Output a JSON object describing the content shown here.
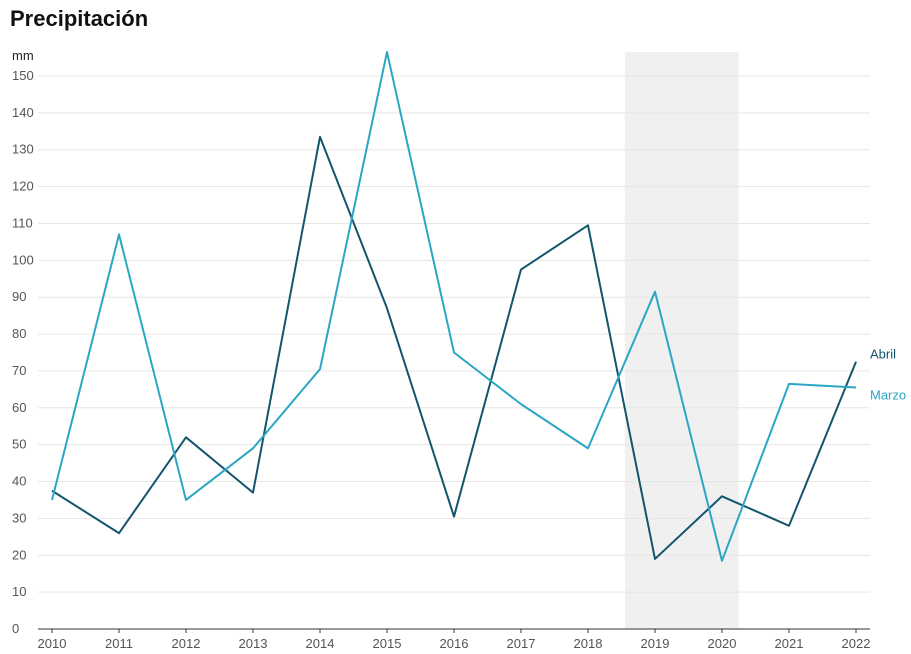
{
  "chart_data": {
    "type": "line",
    "title": "Precipitación",
    "ylabel": "mm",
    "xlabel": "",
    "x": [
      2010,
      2011,
      2012,
      2013,
      2014,
      2015,
      2016,
      2017,
      2018,
      2019,
      2020,
      2021,
      2022
    ],
    "ylim": [
      0,
      150
    ],
    "yticks": [
      0,
      10,
      20,
      30,
      40,
      50,
      60,
      70,
      80,
      90,
      100,
      110,
      120,
      130,
      140,
      150
    ],
    "grid": true,
    "highlight_range": [
      2019,
      2020
    ],
    "series": [
      {
        "name": "Abril",
        "color": "#14556e",
        "values": [
          37.5,
          26,
          52,
          37,
          133.5,
          87,
          30.5,
          97.5,
          109.5,
          19,
          36,
          28,
          72.5
        ]
      },
      {
        "name": "Marzo",
        "color": "#2ba6c4",
        "values": [
          35,
          107,
          35,
          49,
          70.5,
          156.5,
          75,
          61,
          49,
          91.5,
          18.5,
          66.5,
          65.5
        ]
      }
    ]
  }
}
